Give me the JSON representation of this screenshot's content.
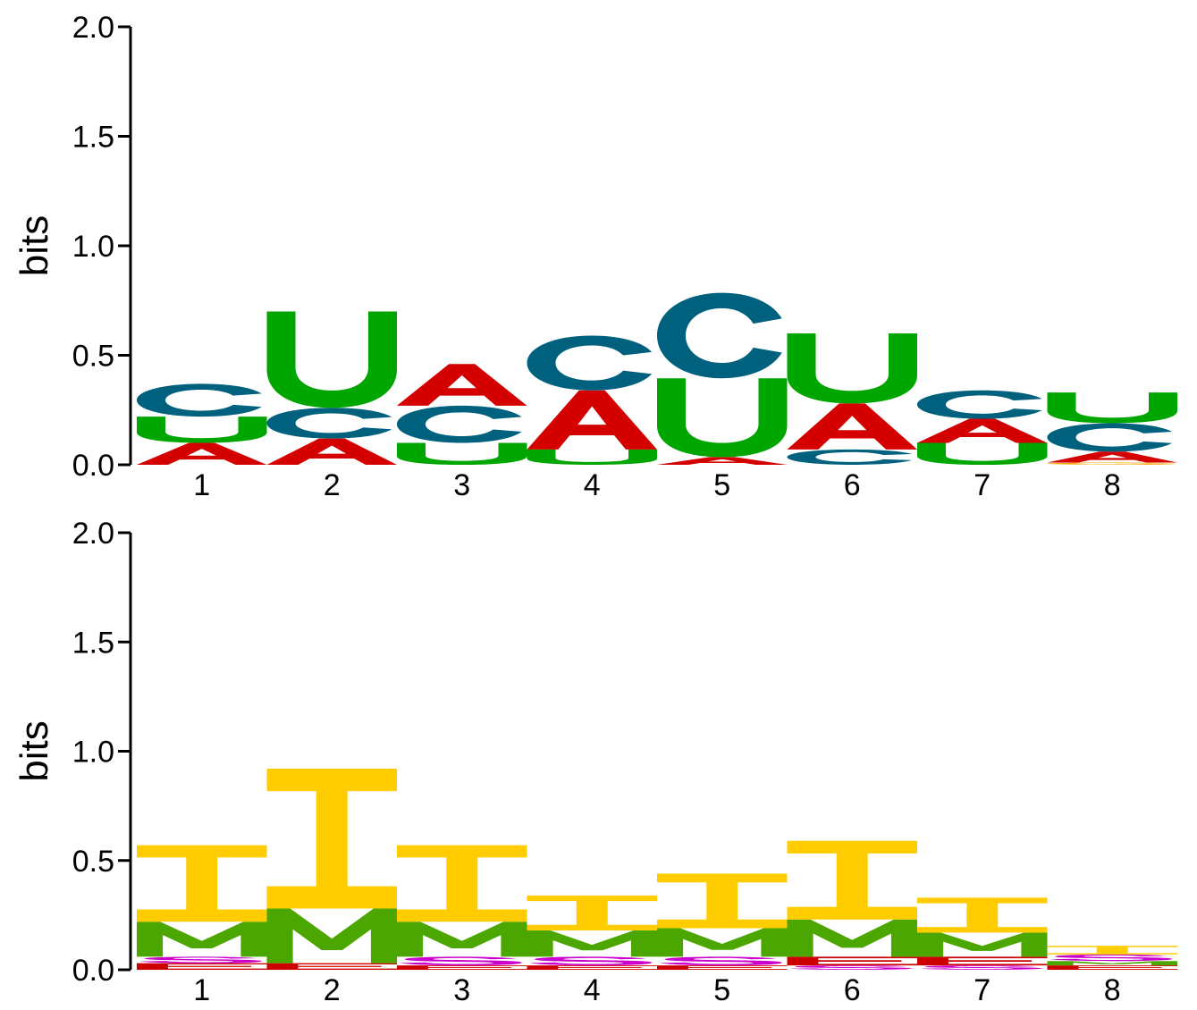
{
  "chart_data": [
    {
      "type": "sequence-logo",
      "alphabet": "RNA",
      "ylabel": "bits",
      "ylim": [
        0,
        2.0
      ],
      "yticks": [
        "0.0",
        "0.5",
        "1.0",
        "1.5",
        "2.0"
      ],
      "positions": [
        "1",
        "2",
        "3",
        "4",
        "5",
        "6",
        "7",
        "8"
      ],
      "colors": {
        "A": "#d40000",
        "C": "#00617e",
        "G": "#f5a500",
        "U": "#00a600"
      },
      "stacks": [
        [
          {
            "letter": "A",
            "height": 0.1
          },
          {
            "letter": "U",
            "height": 0.12
          },
          {
            "letter": "C",
            "height": 0.15
          }
        ],
        [
          {
            "letter": "A",
            "height": 0.12
          },
          {
            "letter": "C",
            "height": 0.14
          },
          {
            "letter": "U",
            "height": 0.44
          }
        ],
        [
          {
            "letter": "U",
            "height": 0.1
          },
          {
            "letter": "C",
            "height": 0.17
          },
          {
            "letter": "A",
            "height": 0.19
          }
        ],
        [
          {
            "letter": "U",
            "height": 0.07
          },
          {
            "letter": "A",
            "height": 0.27
          },
          {
            "letter": "C",
            "height": 0.25
          }
        ],
        [
          {
            "letter": "A",
            "height": 0.035
          },
          {
            "letter": "U",
            "height": 0.36
          },
          {
            "letter": "C",
            "height": 0.39
          }
        ],
        [
          {
            "letter": "C",
            "height": 0.07
          },
          {
            "letter": "A",
            "height": 0.21
          },
          {
            "letter": "U",
            "height": 0.32
          }
        ],
        [
          {
            "letter": "U",
            "height": 0.1
          },
          {
            "letter": "A",
            "height": 0.11
          },
          {
            "letter": "C",
            "height": 0.13
          }
        ],
        [
          {
            "letter": "G",
            "height": 0.01
          },
          {
            "letter": "A",
            "height": 0.05
          },
          {
            "letter": "C",
            "height": 0.13
          },
          {
            "letter": "U",
            "height": 0.14
          }
        ]
      ]
    },
    {
      "type": "sequence-logo",
      "alphabet": "structure",
      "ylabel": "bits",
      "ylim": [
        0,
        2.0
      ],
      "yticks": [
        "0.0",
        "0.5",
        "1.0",
        "1.5",
        "2.0"
      ],
      "positions": [
        "1",
        "2",
        "3",
        "4",
        "5",
        "6",
        "7",
        "8"
      ],
      "colors": {
        "I": "#ffcc00",
        "M": "#4ca600",
        "S": "#cc00cc",
        "E": "#cc0000"
      },
      "stacks": [
        [
          {
            "letter": "E",
            "height": 0.03
          },
          {
            "letter": "S",
            "height": 0.03
          },
          {
            "letter": "M",
            "height": 0.16
          },
          {
            "letter": "I",
            "height": 0.35
          }
        ],
        [
          {
            "letter": "E",
            "height": 0.03
          },
          {
            "letter": "M",
            "height": 0.25
          },
          {
            "letter": "I",
            "height": 0.64
          }
        ],
        [
          {
            "letter": "E",
            "height": 0.02
          },
          {
            "letter": "S",
            "height": 0.04
          },
          {
            "letter": "M",
            "height": 0.16
          },
          {
            "letter": "I",
            "height": 0.35
          }
        ],
        [
          {
            "letter": "E",
            "height": 0.02
          },
          {
            "letter": "S",
            "height": 0.04
          },
          {
            "letter": "M",
            "height": 0.12
          },
          {
            "letter": "I",
            "height": 0.16
          }
        ],
        [
          {
            "letter": "E",
            "height": 0.02
          },
          {
            "letter": "S",
            "height": 0.04
          },
          {
            "letter": "M",
            "height": 0.13
          },
          {
            "letter": "I",
            "height": 0.25
          }
        ],
        [
          {
            "letter": "S",
            "height": 0.02
          },
          {
            "letter": "E",
            "height": 0.04
          },
          {
            "letter": "M",
            "height": 0.17
          },
          {
            "letter": "I",
            "height": 0.36
          }
        ],
        [
          {
            "letter": "S",
            "height": 0.02
          },
          {
            "letter": "E",
            "height": 0.04
          },
          {
            "letter": "M",
            "height": 0.11
          },
          {
            "letter": "I",
            "height": 0.16
          }
        ],
        [
          {
            "letter": "E",
            "height": 0.02
          },
          {
            "letter": "M",
            "height": 0.02
          },
          {
            "letter": "S",
            "height": 0.03
          },
          {
            "letter": "I",
            "height": 0.04
          }
        ]
      ]
    }
  ]
}
